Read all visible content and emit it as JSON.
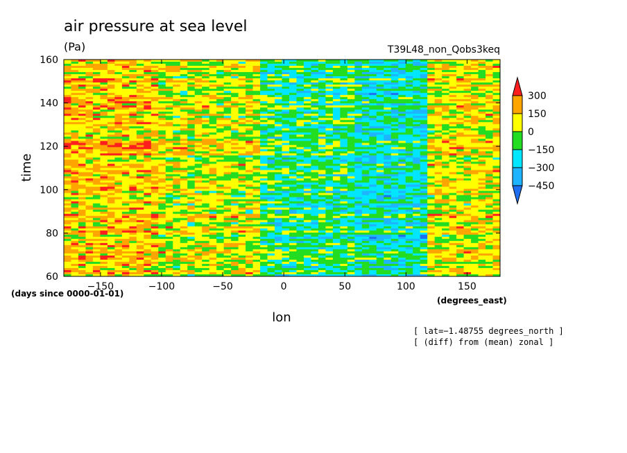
{
  "chart_data": {
    "type": "heatmap",
    "title": "air pressure at sea level",
    "units": "(Pa)",
    "run_label": "T39L48_non_Qobs3keq",
    "xlabel": "lon",
    "ylabel": "time",
    "x_units": "(degrees_east)",
    "y_units": "(days since 0000-01-01)",
    "xlim": [
      -180,
      177
    ],
    "ylim": [
      60,
      160
    ],
    "x_ticks": [
      -150,
      -100,
      -50,
      0,
      50,
      100,
      150
    ],
    "y_ticks": [
      60,
      80,
      100,
      120,
      140,
      160
    ],
    "x_tick_labels": [
      "−150",
      "−100",
      "−50",
      "0",
      "50",
      "100",
      "150"
    ],
    "y_tick_labels": [
      "60",
      "80",
      "100",
      "120",
      "140",
      "160"
    ],
    "notes": [
      "[ lat=−1.48755 degrees_north ]",
      "[ (diff) from (mean) zonal ]"
    ],
    "colorbar": {
      "levels": [
        -450,
        -300,
        -150,
        0,
        150,
        300
      ],
      "labels": [
        "−450",
        "−300",
        "−150",
        "0",
        "150",
        "300"
      ],
      "colors": [
        "#1e6ef0",
        "#1eb4ff",
        "#00e6ff",
        "#22dd22",
        "#ffff00",
        "#ffa500",
        "#ff1e1e"
      ]
    },
    "field_regions": [
      {
        "lon": [
          -180,
          -100
        ],
        "time": [
          60,
          160
        ],
        "mean": 150
      },
      {
        "lon": [
          -100,
          -20
        ],
        "time": [
          60,
          160
        ],
        "mean": 60
      },
      {
        "lon": [
          -20,
          60
        ],
        "time": [
          60,
          160
        ],
        "mean": -120
      },
      {
        "lon": [
          60,
          120
        ],
        "time": [
          60,
          160
        ],
        "mean": -200
      },
      {
        "lon": [
          120,
          177
        ],
        "time": [
          60,
          160
        ],
        "mean": 90
      }
    ]
  }
}
